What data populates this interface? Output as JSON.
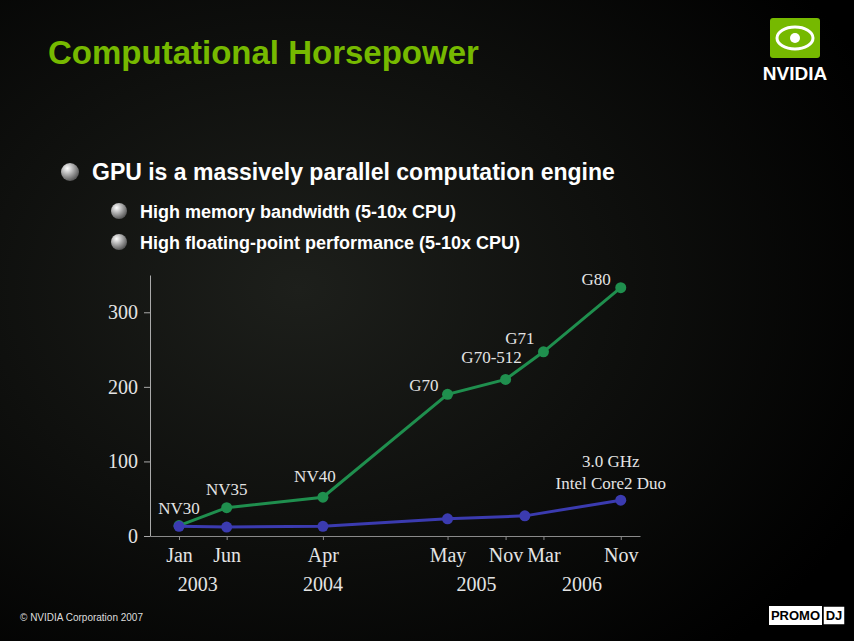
{
  "slide": {
    "title": "Computational Horsepower",
    "logo": "NVIDIA",
    "bullets": [
      {
        "text": "GPU is a massively parallel computation engine",
        "sub": [
          "High memory bandwidth (5-10x CPU)",
          "High floating-point performance (5-10x CPU)"
        ]
      }
    ],
    "footer": "© NVIDIA Corporation 2007",
    "watermark": [
      "PROMO",
      "DJ"
    ]
  },
  "chart_data": {
    "type": "line",
    "xlim": [
      "2002-10",
      "2007-01"
    ],
    "xticks": [
      {
        "value": "2003-01",
        "label": "Jan"
      },
      {
        "value": "2003-06",
        "label": "Jun"
      },
      {
        "value": "2004-04",
        "label": "Apr"
      },
      {
        "value": "2005-05",
        "label": "May"
      },
      {
        "value": "2005-11",
        "label": "Nov"
      },
      {
        "value": "2006-03",
        "label": "Mar"
      },
      {
        "value": "2006-11",
        "label": "Nov"
      }
    ],
    "x_year_labels": [
      {
        "value": "2003-03",
        "label": "2003"
      },
      {
        "value": "2004-04",
        "label": "2004"
      },
      {
        "value": "2005-08",
        "label": "2005"
      },
      {
        "value": "2006-07",
        "label": "2006"
      }
    ],
    "ylim": [
      0,
      350
    ],
    "yticks": [
      0,
      100,
      200,
      300
    ],
    "grid": false,
    "marker": "circle",
    "line_style": "solid",
    "series": [
      {
        "color": "#1f8f4e",
        "x": [
          "2003-01",
          "2003-06",
          "2004-04",
          "2005-05",
          "2005-11",
          "2006-03",
          "2006-11"
        ],
        "values": [
          14,
          38,
          52,
          190,
          210,
          247,
          333
        ],
        "point_labels": [
          "NV30",
          "NV35",
          "NV40",
          "G70",
          "G70-512",
          "G71",
          "G80"
        ]
      },
      {
        "color": "#3b3bb0",
        "x": [
          "2003-01",
          "2003-06",
          "2004-04",
          "2005-05",
          "2006-01",
          "2006-11"
        ],
        "values": [
          13,
          12,
          13,
          23,
          27,
          48
        ],
        "point_labels": [
          null,
          null,
          null,
          null,
          null,
          "3.0 GHz\nIntel Core2 Duo"
        ]
      }
    ]
  }
}
